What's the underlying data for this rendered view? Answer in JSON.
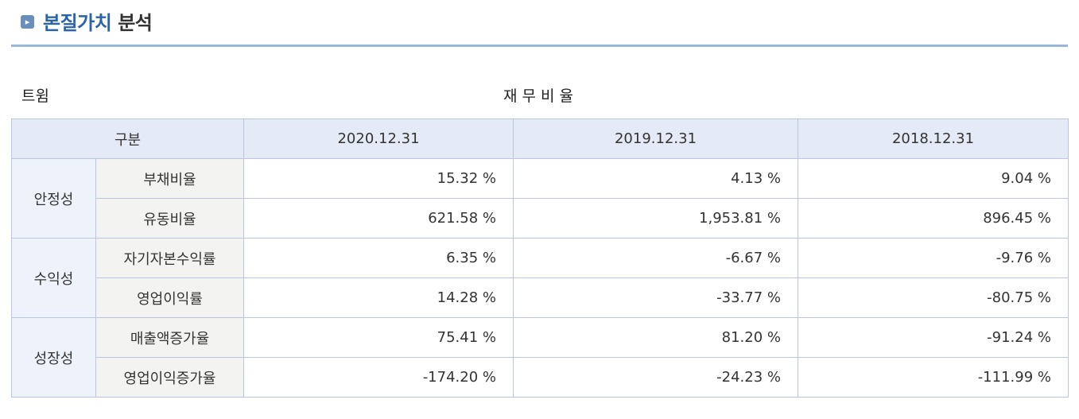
{
  "header": {
    "title_accent": "본질가치",
    "title_rest": "분석"
  },
  "company": "트윔",
  "table_title": "재무비율",
  "columns": [
    "구분",
    "2020.12.31",
    "2019.12.31",
    "2018.12.31"
  ],
  "groups": [
    {
      "name": "안정성",
      "rows": [
        {
          "label": "부채비율",
          "values": [
            "15.32 %",
            "4.13 %",
            "9.04 %"
          ]
        },
        {
          "label": "유동비율",
          "values": [
            "621.58 %",
            "1,953.81 %",
            "896.45 %"
          ]
        }
      ]
    },
    {
      "name": "수익성",
      "rows": [
        {
          "label": "자기자본수익률",
          "values": [
            "6.35 %",
            "-6.67 %",
            "-9.76 %"
          ]
        },
        {
          "label": "영업이익률",
          "values": [
            "14.28 %",
            "-33.77 %",
            "-80.75 %"
          ]
        }
      ]
    },
    {
      "name": "성장성",
      "rows": [
        {
          "label": "매출액증가율",
          "values": [
            "75.41 %",
            "81.20 %",
            "-91.24 %"
          ]
        },
        {
          "label": "영업이익증가율",
          "values": [
            "-174.20 %",
            "-24.23 %",
            "-111.99 %"
          ]
        }
      ]
    }
  ]
}
